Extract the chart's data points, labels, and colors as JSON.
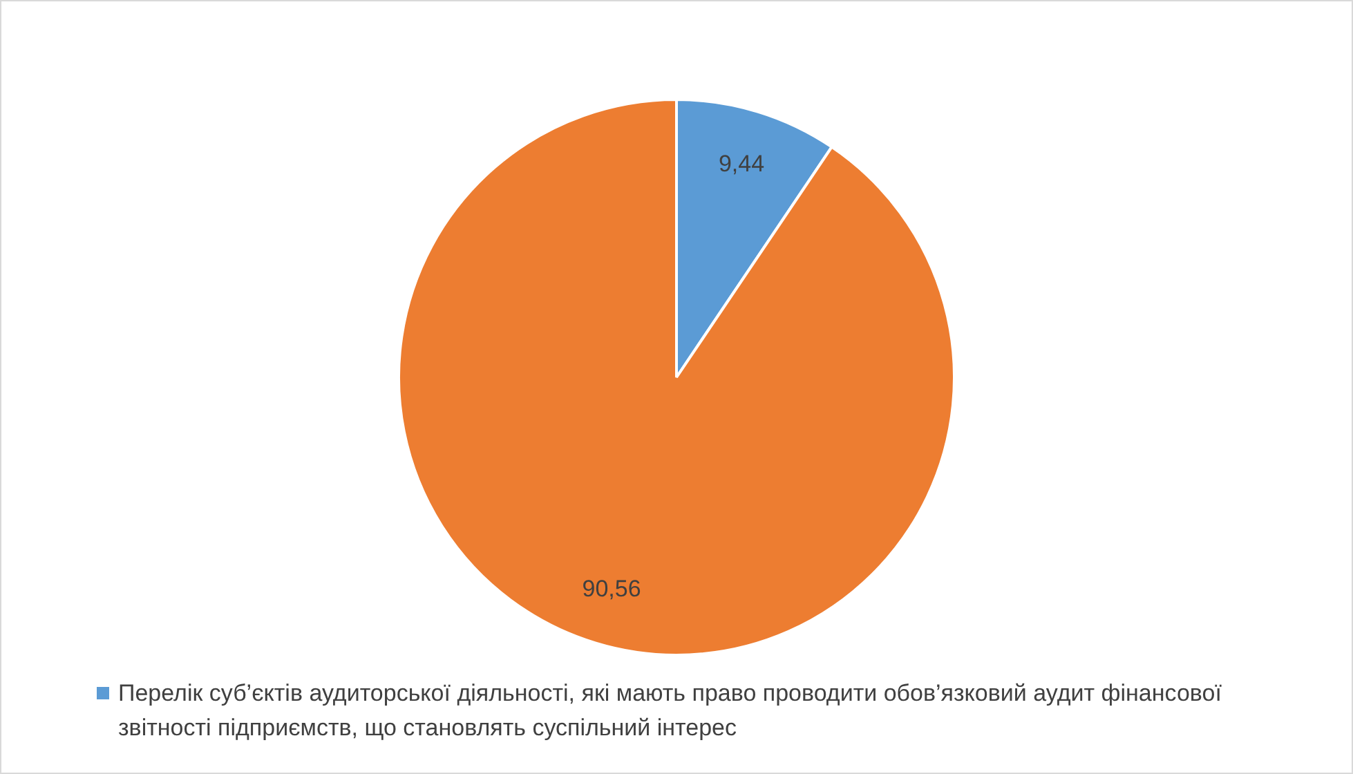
{
  "chart_data": {
    "type": "pie",
    "categories": [
      "Перелік суб’єктів аудиторської діяльності, які мають право проводити обов’язковий аудит фінансової звітності підприємств, що становлять суспільний інтерес",
      null
    ],
    "values": [
      9.44,
      90.56
    ],
    "colors": [
      "#5b9bd5",
      "#ed7d31"
    ],
    "value_labels": [
      "9,44",
      "90,56"
    ],
    "legend": "bottom"
  }
}
